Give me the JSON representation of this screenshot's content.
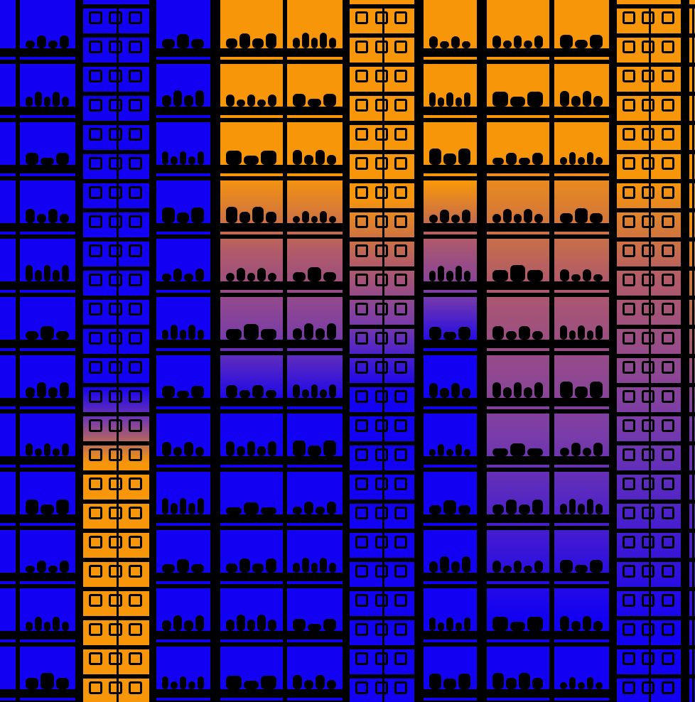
{
  "image": {
    "subject": "posterized-building-facade",
    "palette": {
      "blue": "#1200f2",
      "orange": "#f8960a",
      "purple": "#7a3ca8",
      "rose": "#b05a6a",
      "black": "#000000"
    }
  }
}
